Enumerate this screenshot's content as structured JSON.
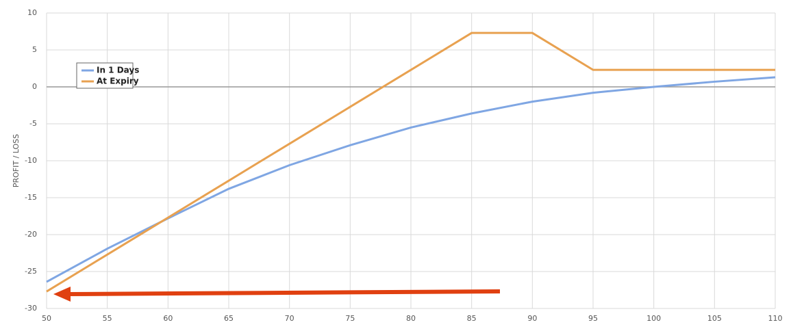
{
  "chart_data": {
    "type": "line",
    "y_label": "PROFIT / LOSS",
    "x": [
      50,
      55,
      60,
      65,
      70,
      75,
      80,
      85,
      90,
      95,
      100,
      105,
      110
    ],
    "series": [
      {
        "name": "In 1 Days",
        "color": "#7fa6e3",
        "values": [
          -26.4,
          -21.9,
          -17.8,
          -13.8,
          -10.6,
          -7.9,
          -5.5,
          -3.6,
          -2.0,
          -0.8,
          0,
          0.7,
          1.3
        ]
      },
      {
        "name": "At Expiry",
        "color": "#e8a150",
        "values": [
          -27.7,
          -22.7,
          -17.7,
          -12.7,
          -7.7,
          -2.7,
          2.3,
          7.3,
          7.3,
          2.3,
          2.3,
          2.3,
          2.3
        ]
      }
    ],
    "xlim": [
      50,
      110
    ],
    "xticks": [
      50,
      55,
      60,
      65,
      70,
      75,
      80,
      85,
      90,
      95,
      100,
      105,
      110
    ],
    "ylim": [
      -30,
      10
    ],
    "yticks": [
      -30,
      -25,
      -20,
      -15,
      -10,
      -5,
      0,
      5,
      10
    ],
    "grid": true,
    "legend": "top-left"
  }
}
